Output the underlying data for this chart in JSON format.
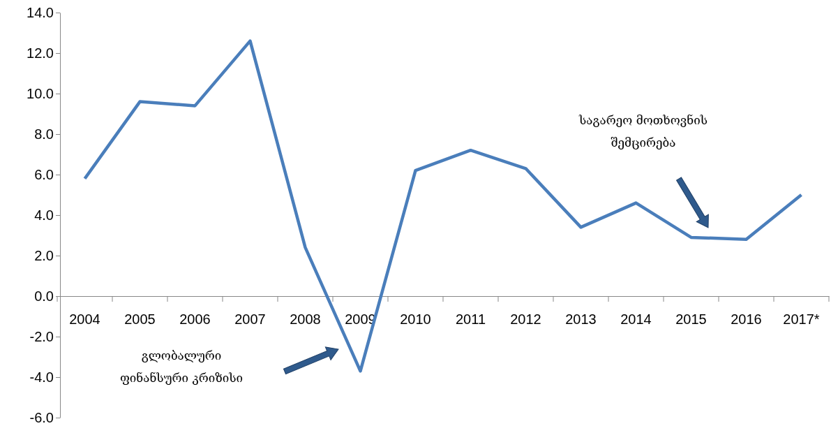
{
  "chart_data": {
    "type": "line",
    "categories": [
      "2004",
      "2005",
      "2006",
      "2007",
      "2008",
      "2009",
      "2010",
      "2011",
      "2012",
      "2013",
      "2014",
      "2015",
      "2016",
      "2017*"
    ],
    "values": [
      5.8,
      9.6,
      9.4,
      12.6,
      2.4,
      -3.7,
      6.2,
      7.2,
      6.3,
      3.4,
      4.6,
      2.9,
      2.8,
      5.0
    ],
    "color": "#4a7ebb",
    "ylim": [
      -6,
      14
    ],
    "yticks": [
      {
        "value": -6,
        "label": "-6.0"
      },
      {
        "value": -4,
        "label": "-4.0"
      },
      {
        "value": -2,
        "label": "-2.0"
      },
      {
        "value": 0,
        "label": "0.0"
      },
      {
        "value": 2,
        "label": "2.0"
      },
      {
        "value": 4,
        "label": "4.0"
      },
      {
        "value": 6,
        "label": "6.0"
      },
      {
        "value": 8,
        "label": "8.0"
      },
      {
        "value": 10,
        "label": "10.0"
      },
      {
        "value": 12,
        "label": "12.0"
      },
      {
        "value": 14,
        "label": "14.0"
      }
    ],
    "grid": false,
    "marker": "none",
    "annotations": [
      "გლობალური\nფინანსური კრიზისი",
      "საგარეო მოთხოვნის\nშემცირება"
    ]
  }
}
